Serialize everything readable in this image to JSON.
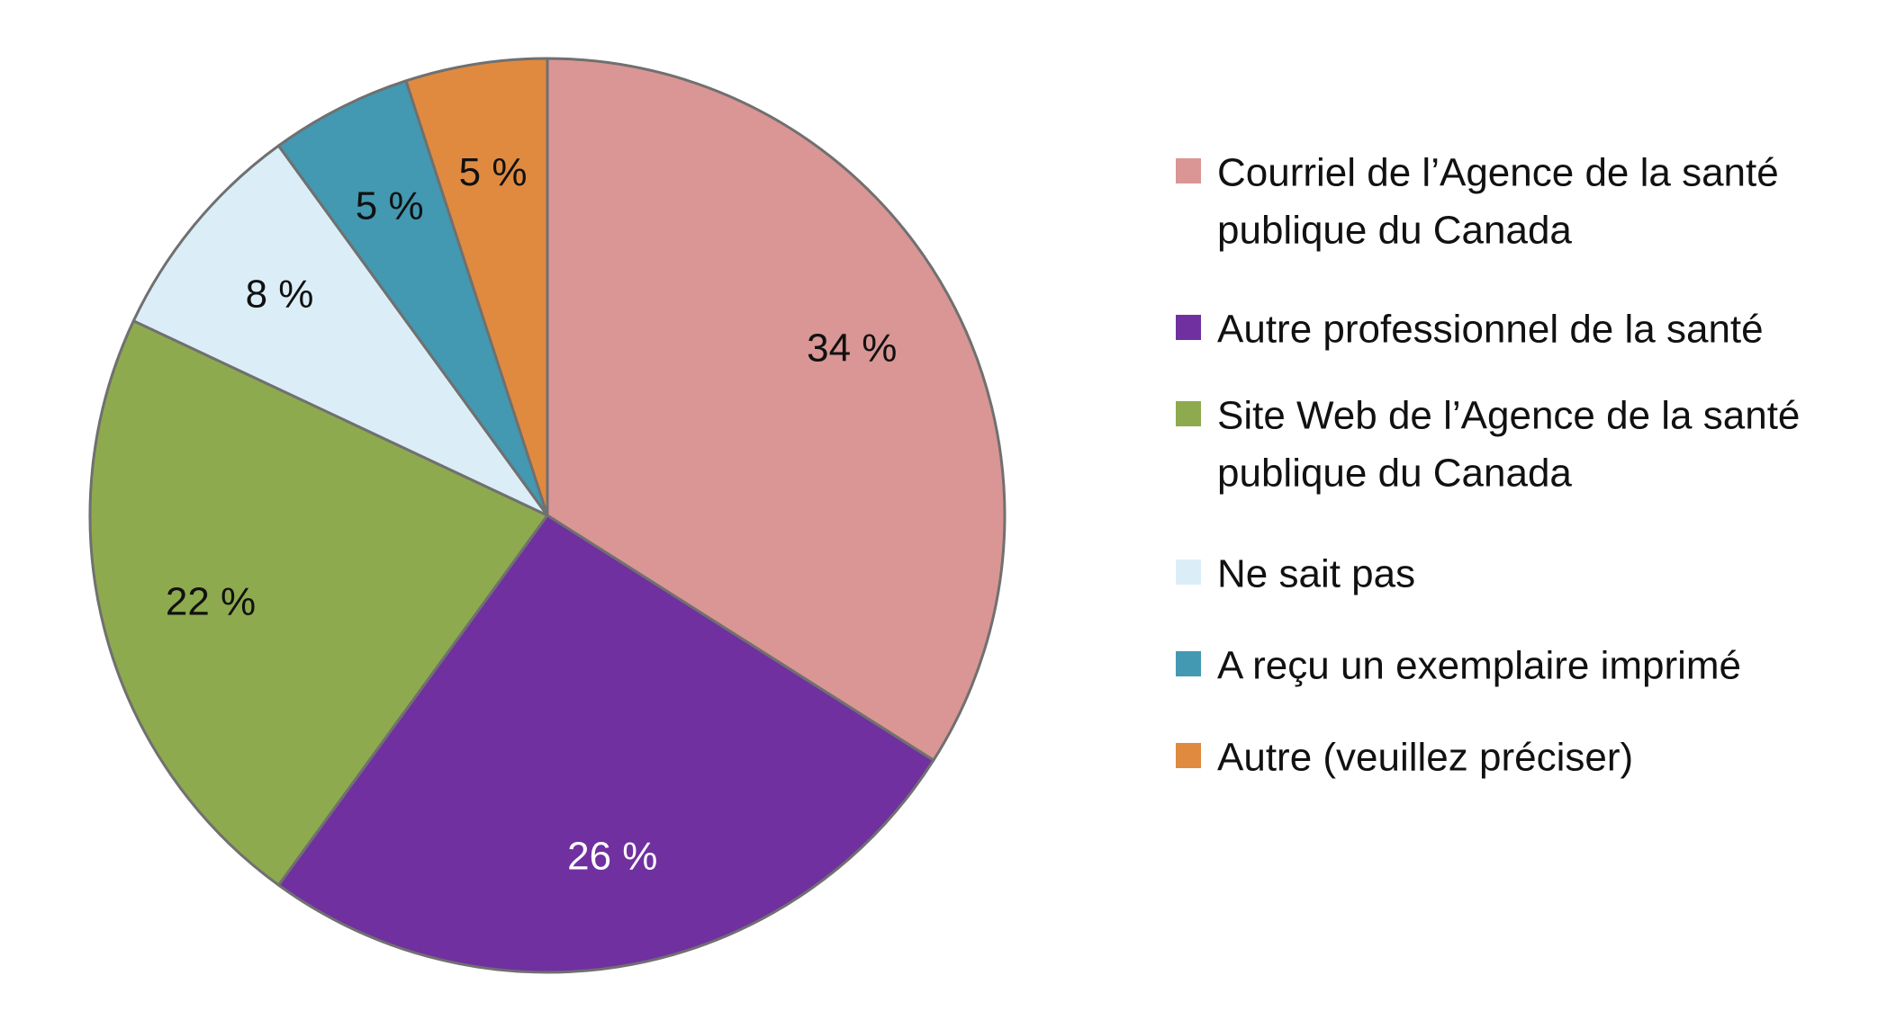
{
  "chart_data": {
    "type": "pie",
    "start_angle_deg": 0,
    "direction": "clockwise",
    "legend_position": "right",
    "slices": [
      {
        "label_lines": [
          "Courriel de l’Agence de la santé",
          "publique du Canada"
        ],
        "value": 34,
        "value_label": "34 %",
        "color": "#d99694",
        "label_color": "#111111"
      },
      {
        "label_lines": [
          "Autre professionnel de la santé"
        ],
        "value": 26,
        "value_label": "26 %",
        "color": "#7030a0",
        "label_color": "#ffffff"
      },
      {
        "label_lines": [
          "Site Web de l’Agence de la santé",
          "publique du Canada"
        ],
        "value": 22,
        "value_label": "22 %",
        "color": "#8eaa4e",
        "label_color": "#111111"
      },
      {
        "label_lines": [
          "Ne sait pas"
        ],
        "value": 8,
        "value_label": "8 %",
        "color": "#dbeef8",
        "label_color": "#111111"
      },
      {
        "label_lines": [
          "A reçu un exemplaire imprimé"
        ],
        "value": 5,
        "value_label": "5 %",
        "color": "#4299b1",
        "label_color": "#111111"
      },
      {
        "label_lines": [
          "Autre (veuillez préciser)"
        ],
        "value": 5,
        "value_label": "5 %",
        "color": "#e08a40",
        "label_color": "#111111"
      }
    ]
  }
}
